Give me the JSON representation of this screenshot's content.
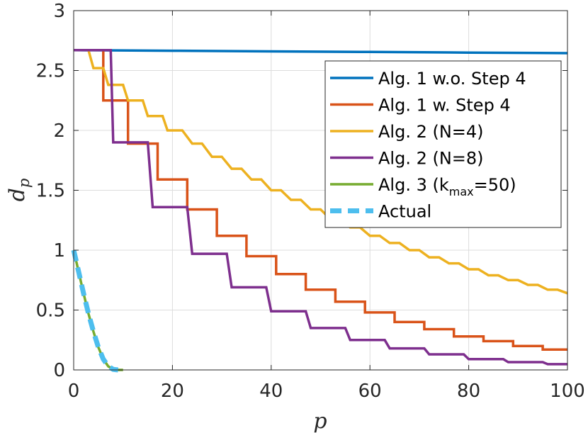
{
  "chart_data": {
    "type": "line",
    "title": "",
    "xlabel": "p",
    "ylabel_main": "d",
    "ylabel_sub": "p",
    "xlim": [
      0,
      100
    ],
    "ylim": [
      0,
      3
    ],
    "grid": true,
    "legend_position": "top-right",
    "x_ticks": [
      0,
      20,
      40,
      60,
      80,
      100
    ],
    "x_tick_labels": [
      "0",
      "20",
      "40",
      "60",
      "80",
      "100"
    ],
    "y_ticks": [
      0,
      0.5,
      1,
      1.5,
      2,
      2.5,
      3
    ],
    "y_tick_labels": [
      "0",
      "0.5",
      "1",
      "1.5",
      "2",
      "2.5",
      "3"
    ],
    "series": [
      {
        "name": "Alg. 1 w.o. Step 4",
        "label_parts": [
          {
            "text": "Alg. 1 w.o. Step 4"
          }
        ],
        "color": "#0072BD",
        "dash": false,
        "x": [
          0,
          20,
          40,
          60,
          80,
          100
        ],
        "y": [
          2.67,
          2.665,
          2.66,
          2.655,
          2.65,
          2.645
        ]
      },
      {
        "name": "Alg. 1 w. Step 4",
        "label_parts": [
          {
            "text": "Alg. 1 w. Step 4"
          }
        ],
        "color": "#D95319",
        "dash": false,
        "x": [
          0,
          6,
          6,
          11,
          11,
          17,
          17,
          23,
          23,
          29,
          29,
          35,
          35,
          41,
          41,
          47,
          47,
          53,
          53,
          59,
          59,
          65,
          65,
          71,
          71,
          77,
          77,
          83,
          83,
          89,
          89,
          95,
          95,
          100
        ],
        "y": [
          2.67,
          2.67,
          2.25,
          2.25,
          1.89,
          1.89,
          1.59,
          1.59,
          1.34,
          1.34,
          1.12,
          1.12,
          0.95,
          0.95,
          0.8,
          0.8,
          0.67,
          0.67,
          0.57,
          0.57,
          0.48,
          0.48,
          0.4,
          0.4,
          0.34,
          0.34,
          0.28,
          0.28,
          0.24,
          0.24,
          0.2,
          0.2,
          0.17,
          0.17
        ]
      },
      {
        "name": "Alg. 2 (N=4)",
        "label_parts": [
          {
            "text": "Alg. 2 (N=4)"
          }
        ],
        "color": "#EDB120",
        "dash": false,
        "x": [
          0,
          3,
          4,
          6,
          7,
          10,
          11,
          14,
          15,
          18,
          19,
          22,
          24,
          26,
          28,
          30,
          32,
          34,
          36,
          38,
          40,
          42,
          44,
          46,
          48,
          50,
          52,
          54,
          56,
          58,
          60,
          62,
          64,
          66,
          68,
          70,
          72,
          74,
          76,
          78,
          80,
          82,
          84,
          86,
          88,
          90,
          92,
          94,
          96,
          98,
          100
        ],
        "y": [
          2.67,
          2.67,
          2.52,
          2.52,
          2.38,
          2.38,
          2.25,
          2.25,
          2.12,
          2.12,
          2.0,
          2.0,
          1.89,
          1.89,
          1.78,
          1.78,
          1.68,
          1.68,
          1.59,
          1.59,
          1.5,
          1.5,
          1.42,
          1.42,
          1.34,
          1.34,
          1.26,
          1.26,
          1.19,
          1.19,
          1.12,
          1.12,
          1.06,
          1.06,
          1.0,
          1.0,
          0.94,
          0.94,
          0.89,
          0.89,
          0.84,
          0.84,
          0.79,
          0.79,
          0.75,
          0.75,
          0.71,
          0.71,
          0.67,
          0.67,
          0.64
        ]
      },
      {
        "name": "Alg. 2 (N=8)",
        "label_parts": [
          {
            "text": "Alg. 2 (N=8)"
          }
        ],
        "color": "#7E2F8E",
        "dash": false,
        "x": [
          0,
          7.5,
          8,
          15,
          16,
          23,
          24,
          31,
          32,
          39,
          40,
          47,
          48,
          55,
          56,
          63,
          64,
          71,
          72,
          79,
          80,
          87,
          88,
          95,
          96,
          100
        ],
        "y": [
          2.67,
          2.67,
          1.9,
          1.9,
          1.36,
          1.36,
          0.97,
          0.97,
          0.69,
          0.69,
          0.49,
          0.49,
          0.35,
          0.35,
          0.25,
          0.25,
          0.18,
          0.18,
          0.13,
          0.13,
          0.09,
          0.09,
          0.065,
          0.065,
          0.048,
          0.048
        ]
      },
      {
        "name": "Alg. 3 (kmax=50)",
        "label_parts": [
          {
            "text": "Alg. 3 (k"
          },
          {
            "text": "max",
            "sub": true
          },
          {
            "text": "=50)"
          }
        ],
        "color": "#77AC30",
        "dash": false,
        "x": [
          0,
          1,
          2,
          3,
          4,
          5,
          6,
          7,
          8,
          9,
          10
        ],
        "y": [
          1.0,
          0.82,
          0.64,
          0.47,
          0.32,
          0.19,
          0.09,
          0.03,
          0.005,
          0.0,
          0.0
        ]
      },
      {
        "name": "Actual",
        "label_parts": [
          {
            "text": "Actual"
          }
        ],
        "color": "#4DBEEE",
        "dash": true,
        "x": [
          0,
          1,
          2,
          3,
          4,
          5,
          6,
          7,
          8,
          9
        ],
        "y": [
          1.0,
          0.82,
          0.64,
          0.47,
          0.32,
          0.19,
          0.09,
          0.03,
          0.005,
          0.0
        ]
      }
    ]
  }
}
